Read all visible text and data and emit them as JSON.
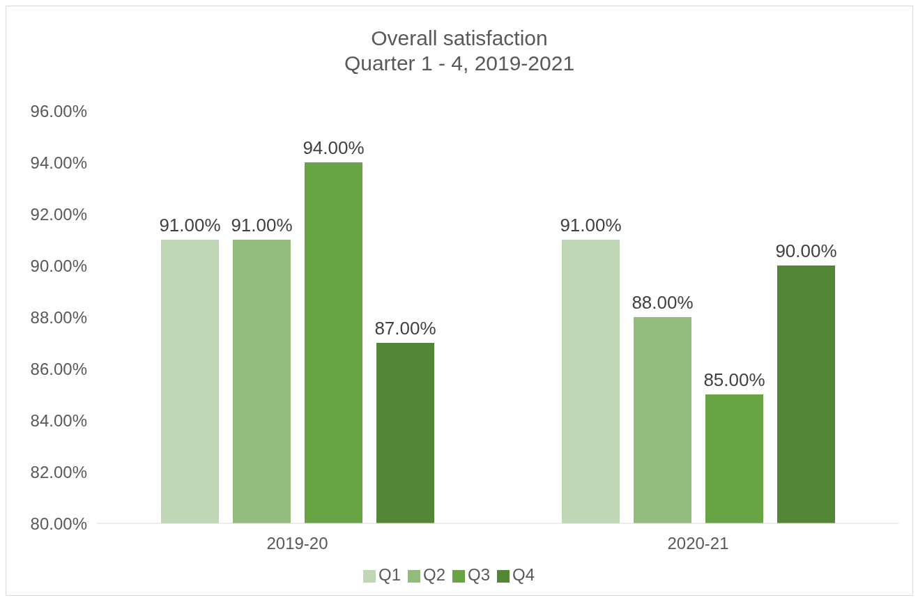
{
  "chart_data": {
    "type": "bar",
    "title": "Overall satisfaction",
    "subtitle": "Quarter 1 - 4, 2019-2021",
    "categories": [
      "2019-20",
      "2020-21"
    ],
    "series": [
      {
        "name": "Q1",
        "color": "#bfd7b4",
        "values": [
          91,
          91
        ],
        "value_labels": [
          "91.00%",
          "91.00%"
        ]
      },
      {
        "name": "Q2",
        "color": "#93bc7c",
        "values": [
          91,
          88
        ],
        "value_labels": [
          "91.00%",
          "88.00%"
        ]
      },
      {
        "name": "Q3",
        "color": "#68a443",
        "values": [
          94,
          85
        ],
        "value_labels": [
          "94.00%",
          "85.00%"
        ]
      },
      {
        "name": "Q4",
        "color": "#548638",
        "values": [
          87,
          90
        ],
        "value_labels": [
          "87.00%",
          "90.00%"
        ]
      }
    ],
    "ylim": [
      80,
      96
    ],
    "yticks": [
      {
        "value": 80,
        "label": "80.00%"
      },
      {
        "value": 82,
        "label": "82.00%"
      },
      {
        "value": 84,
        "label": "84.00%"
      },
      {
        "value": 86,
        "label": "86.00%"
      },
      {
        "value": 88,
        "label": "88.00%"
      },
      {
        "value": 90,
        "label": "90.00%"
      },
      {
        "value": 92,
        "label": "92.00%"
      },
      {
        "value": 94,
        "label": "94.00%"
      },
      {
        "value": 96,
        "label": "96.00%"
      }
    ],
    "grid": false,
    "legend": "bottom"
  }
}
